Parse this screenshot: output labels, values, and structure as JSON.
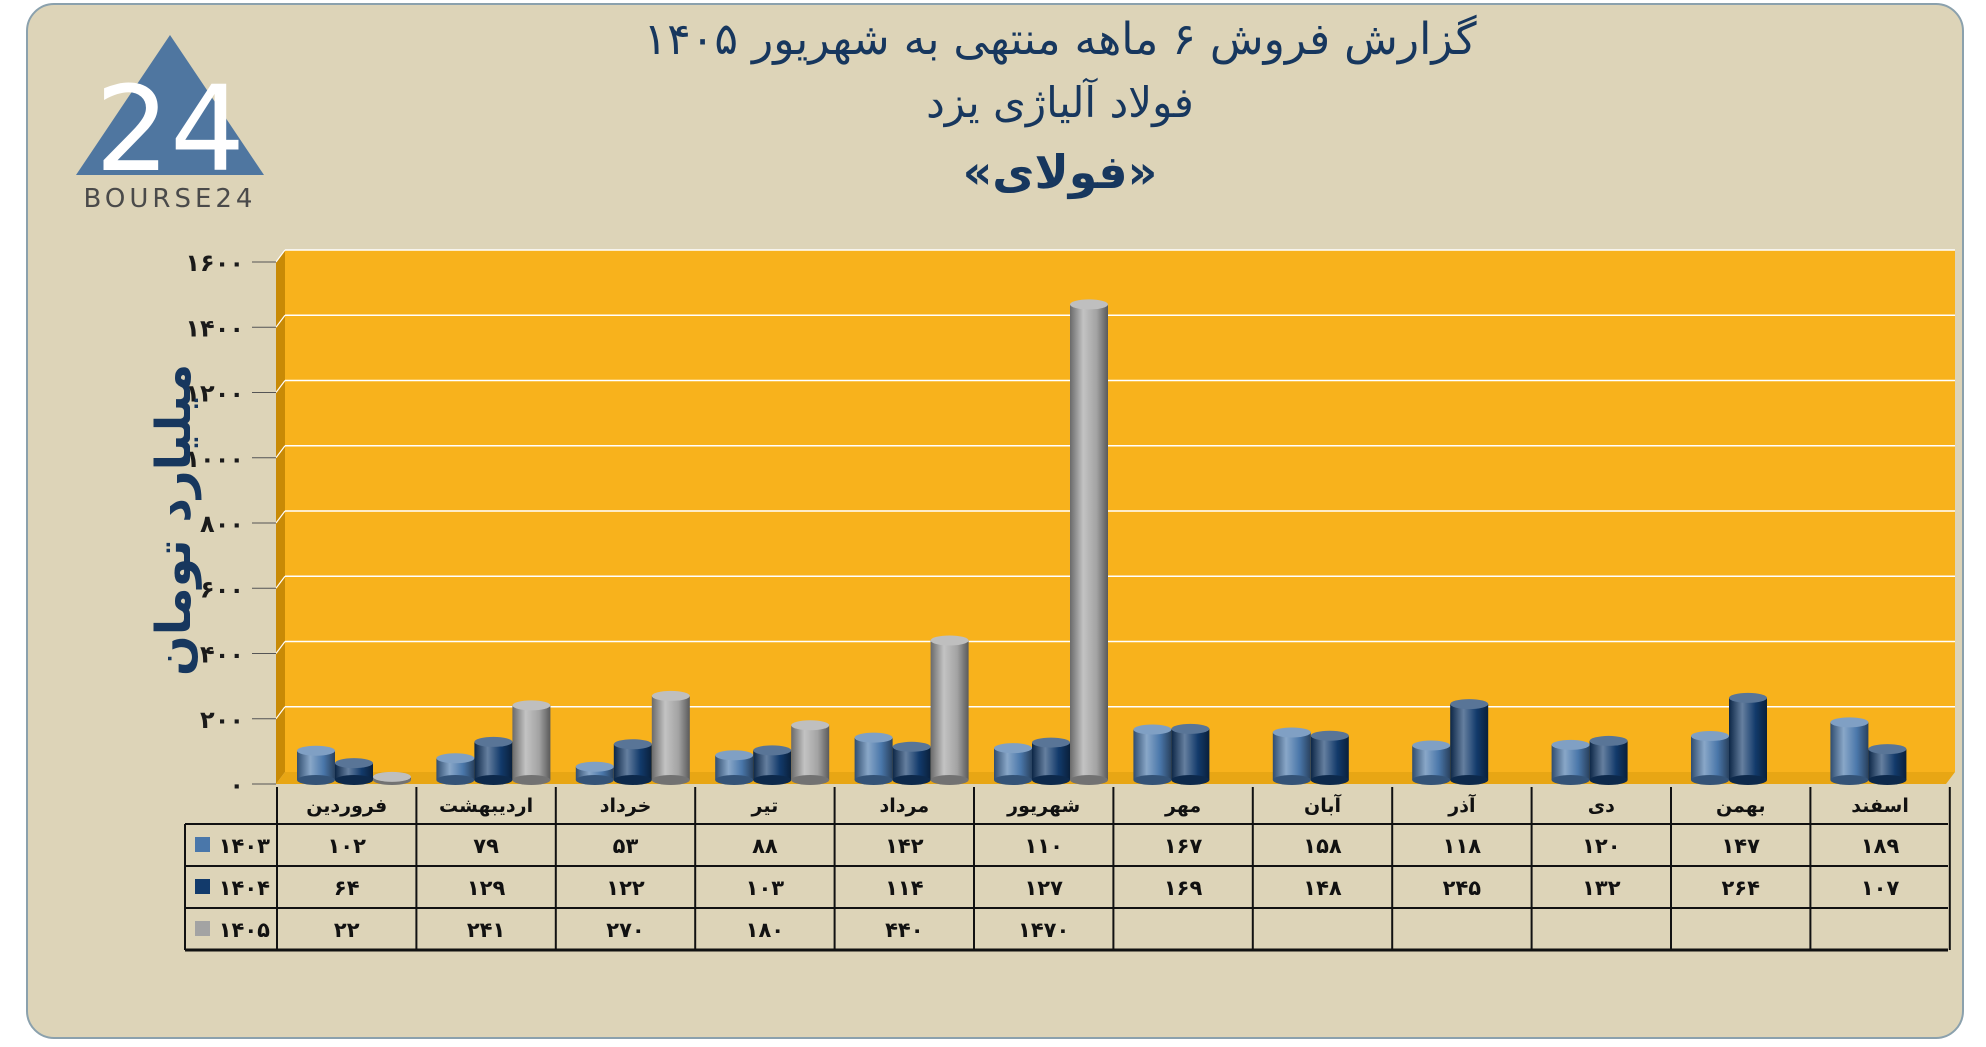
{
  "header": {
    "title_line1": "گزارش  فروش ۶ ماهه منتهی به شهریور ۱۴۰۵",
    "title_line2": "فولاد آلیاژی یزد",
    "title_line3": "«فولای»",
    "logo_text": "BOURSE24",
    "logo_mark": "24"
  },
  "colors": {
    "background": "#ddd4b8",
    "plot": "#f8b21c",
    "plot_side": "#c88a06",
    "series_1403": "#4a77aa",
    "series_1404": "#123a6b",
    "series_1405": "#a3a3a3",
    "text": "#17375e"
  },
  "chart_data": {
    "type": "bar",
    "categories": [
      "فروردین",
      "اردیبهشت",
      "خرداد",
      "تیر",
      "مرداد",
      "شهریور",
      "مهر",
      "آبان",
      "آذر",
      "دی",
      "بهمن",
      "اسفند"
    ],
    "series": [
      {
        "name": "۱۴۰۳",
        "values": [
          102,
          79,
          53,
          88,
          142,
          110,
          167,
          158,
          118,
          120,
          147,
          189
        ]
      },
      {
        "name": "۱۴۰۴",
        "values": [
          64,
          129,
          122,
          103,
          114,
          127,
          169,
          148,
          245,
          132,
          264,
          107
        ]
      },
      {
        "name": "۱۴۰۵",
        "values": [
          22,
          241,
          270,
          180,
          440,
          1470,
          null,
          null,
          null,
          null,
          null,
          null
        ]
      }
    ],
    "value_labels": [
      [
        "۱۰۲",
        "۷۹",
        "۵۳",
        "۸۸",
        "۱۴۲",
        "۱۱۰",
        "۱۶۷",
        "۱۵۸",
        "۱۱۸",
        "۱۲۰",
        "۱۴۷",
        "۱۸۹"
      ],
      [
        "۶۴",
        "۱۲۹",
        "۱۲۲",
        "۱۰۳",
        "۱۱۴",
        "۱۲۷",
        "۱۶۹",
        "۱۴۸",
        "۲۴۵",
        "۱۳۲",
        "۲۶۴",
        "۱۰۷"
      ],
      [
        "۲۲",
        "۲۴۱",
        "۲۷۰",
        "۱۸۰",
        "۴۴۰",
        "۱۴۷۰",
        "",
        "",
        "",
        "",
        "",
        ""
      ]
    ],
    "ylabel": "میلیارد تومان",
    "ylim": [
      0,
      1600
    ],
    "yticks": [
      0,
      200,
      400,
      600,
      800,
      1000,
      1200,
      1400,
      1600
    ],
    "ytick_labels": [
      "۰",
      "۲۰۰",
      "۴۰۰",
      "۶۰۰",
      "۸۰۰",
      "۱۰۰۰",
      "۱۲۰۰",
      "۱۴۰۰",
      "۱۶۰۰"
    ],
    "grid": true,
    "legend": "data-table-left"
  }
}
